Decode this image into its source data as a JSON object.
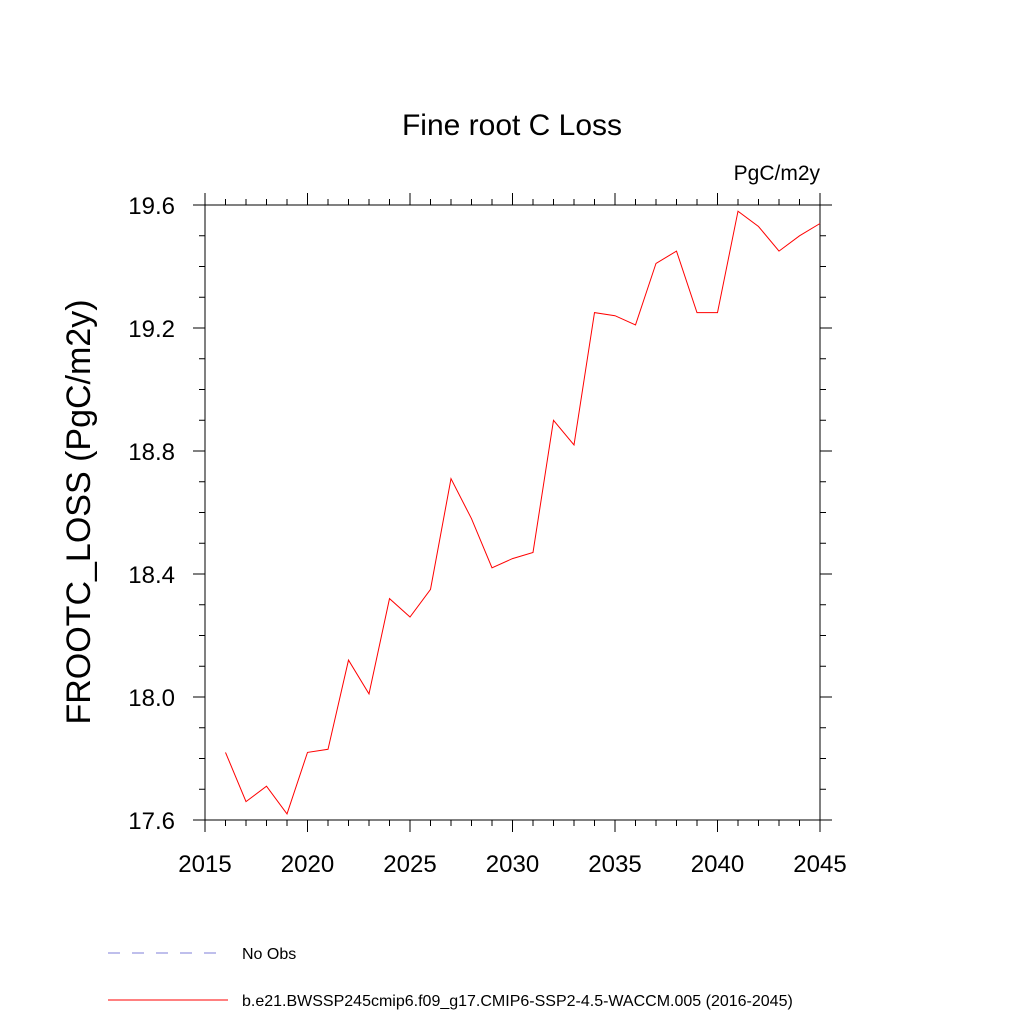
{
  "chart_data": {
    "type": "line",
    "title": "Fine root C Loss",
    "units_label": "PgC/m2y",
    "ylabel": "FROOTC_LOSS  (PgC/m2y)",
    "xlabel": "",
    "xlim": [
      2015,
      2045
    ],
    "ylim": [
      17.6,
      19.6
    ],
    "x_ticks": [
      2015,
      2020,
      2025,
      2030,
      2035,
      2040,
      2045
    ],
    "y_ticks": [
      17.6,
      18.0,
      18.4,
      18.8,
      19.2,
      19.6
    ],
    "x_tick_labels": [
      "2015",
      "2020",
      "2025",
      "2030",
      "2035",
      "2040",
      "2045"
    ],
    "y_tick_labels": [
      "17.6",
      "18.0",
      "18.4",
      "18.8",
      "19.2",
      "19.6"
    ],
    "grid": false,
    "legend_position": "bottom",
    "series": [
      {
        "name": "b.e21.BWSSP245cmip6.f09_g17.CMIP6-SSP2-4.5-WACCM.005 (2016-2045)",
        "color": "#ff0000",
        "style": "solid",
        "x": [
          2016,
          2017,
          2018,
          2019,
          2020,
          2021,
          2022,
          2023,
          2024,
          2025,
          2026,
          2027,
          2028,
          2029,
          2030,
          2031,
          2032,
          2033,
          2034,
          2035,
          2036,
          2037,
          2038,
          2039,
          2040,
          2041,
          2042,
          2043,
          2044,
          2045
        ],
        "values": [
          17.82,
          17.66,
          17.71,
          17.62,
          17.82,
          17.83,
          18.12,
          18.01,
          18.32,
          18.26,
          18.35,
          18.71,
          18.58,
          18.42,
          18.45,
          18.47,
          18.9,
          18.82,
          19.25,
          19.24,
          19.21,
          19.41,
          19.45,
          19.25,
          19.25,
          19.58,
          19.53,
          19.45,
          19.5,
          19.54
        ]
      }
    ],
    "legend": [
      {
        "label": "No Obs",
        "color": "#7f7fd8",
        "style": "dashed"
      },
      {
        "label": "b.e21.BWSSP245cmip6.f09_g17.CMIP6-SSP2-4.5-WACCM.005 (2016-2045)",
        "color": "#ff0000",
        "style": "solid"
      }
    ]
  }
}
